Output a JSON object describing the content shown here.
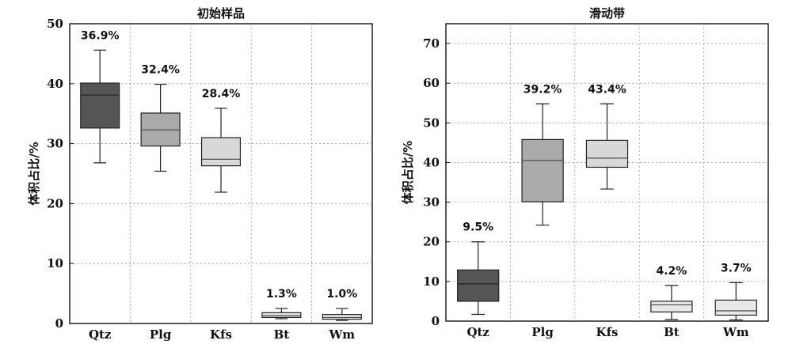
{
  "chart_data": [
    {
      "type": "box",
      "title": "初始样品",
      "xlabel": "",
      "ylabel": "体积占比/%",
      "ylim": [
        0,
        50
      ],
      "yticks": [
        0,
        10,
        20,
        30,
        40,
        50
      ],
      "grid": true,
      "categories": [
        "Qtz",
        "Plg",
        "Kfs",
        "Bt",
        "Wm"
      ],
      "fill_colors": [
        "#555555",
        "#aaaaaa",
        "#d8d8d8",
        "#e8e8e8",
        "#e8e8e8"
      ],
      "boxes": [
        {
          "min": 26.8,
          "q1": 32.6,
          "median": 38.1,
          "q3": 40.1,
          "max": 45.6,
          "label": "36.9%"
        },
        {
          "min": 25.4,
          "q1": 29.6,
          "median": 32.3,
          "q3": 35.1,
          "max": 39.9,
          "label": "32.4%"
        },
        {
          "min": 21.9,
          "q1": 26.3,
          "median": 27.4,
          "q3": 31.0,
          "max": 35.9,
          "label": "28.4%"
        },
        {
          "min": 0.8,
          "q1": 1.0,
          "median": 1.3,
          "q3": 1.8,
          "max": 2.5,
          "label": "1.3%"
        },
        {
          "min": 0.5,
          "q1": 0.7,
          "median": 1.0,
          "q3": 1.5,
          "max": 2.5,
          "label": "1.0%"
        }
      ]
    },
    {
      "type": "box",
      "title": "滑动带",
      "xlabel": "",
      "ylabel": "体积占比/%",
      "ylim": [
        0,
        75
      ],
      "yticks": [
        0,
        10,
        20,
        30,
        40,
        50,
        60,
        70
      ],
      "grid": true,
      "categories": [
        "Qtz",
        "Plg",
        "Kfs",
        "Bt",
        "Wm"
      ],
      "fill_colors": [
        "#555555",
        "#aaaaaa",
        "#d8d8d8",
        "#e8e8e8",
        "#e8e8e8"
      ],
      "boxes": [
        {
          "min": 1.7,
          "q1": 5.0,
          "median": 9.4,
          "q3": 12.9,
          "max": 20.0,
          "label": "9.5%"
        },
        {
          "min": 24.2,
          "q1": 30.1,
          "median": 40.5,
          "q3": 45.8,
          "max": 54.8,
          "label": "39.2%"
        },
        {
          "min": 33.3,
          "q1": 38.8,
          "median": 41.1,
          "q3": 45.6,
          "max": 54.8,
          "label": "43.4%"
        },
        {
          "min": 0.4,
          "q1": 2.3,
          "median": 4.1,
          "q3": 5.0,
          "max": 9.0,
          "label": "4.2%"
        },
        {
          "min": 0.3,
          "q1": 1.5,
          "median": 2.6,
          "q3": 5.3,
          "max": 9.7,
          "label": "3.7%"
        }
      ]
    }
  ]
}
